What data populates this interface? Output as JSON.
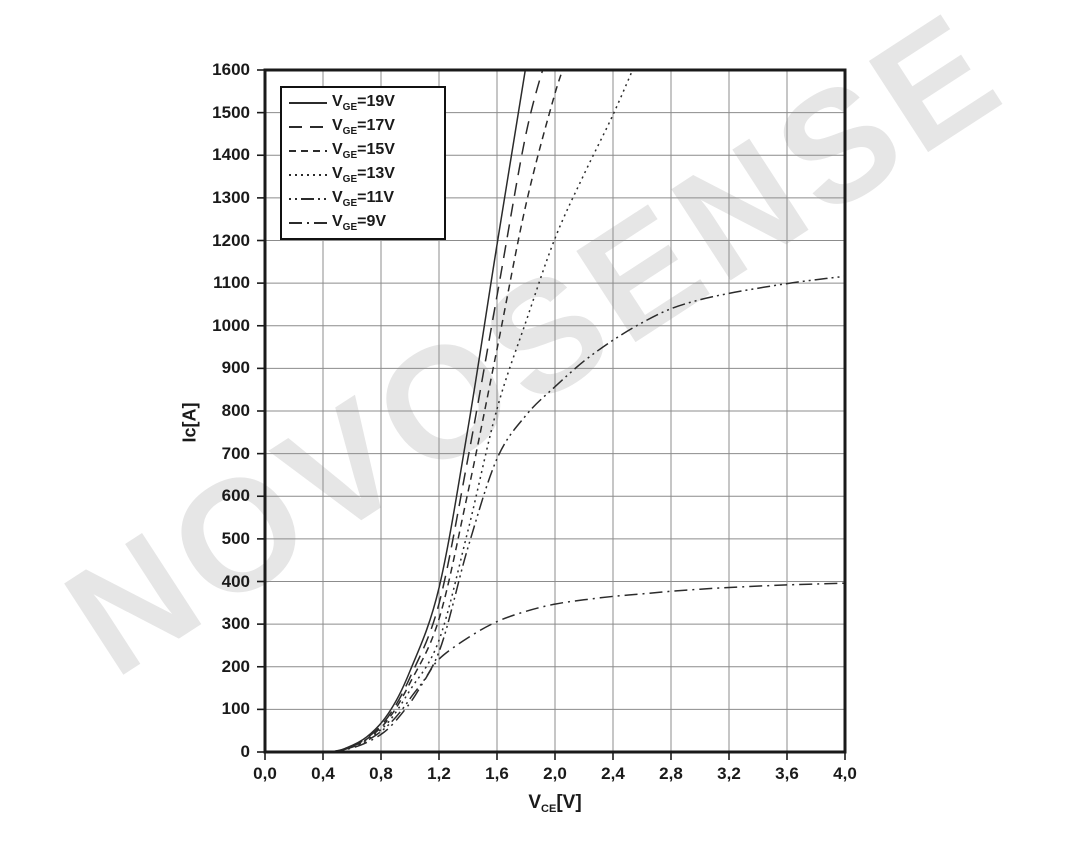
{
  "watermark": "NOVOSENSE",
  "colors": {
    "background": "#ffffff",
    "ink": "#1a1a1a",
    "grid": "#8c8c8c",
    "curve": "#2b2b2b",
    "watermark": "#e6e6e6"
  },
  "chart_data": {
    "type": "line",
    "title": "",
    "xlabel": {
      "pre": "V",
      "sub": "CE",
      "post": "[V]"
    },
    "ylabel": "Ic[A]",
    "xlim": [
      0,
      4
    ],
    "ylim": [
      0,
      1600
    ],
    "grid": true,
    "legend_position": "top-left",
    "x_ticks": [
      0,
      0.4,
      0.8,
      1.2,
      1.6,
      2.0,
      2.4,
      2.8,
      3.2,
      3.6,
      4.0
    ],
    "x_tick_labels": [
      "0,0",
      "0,4",
      "0,8",
      "1,2",
      "1,6",
      "2,0",
      "2,4",
      "2,8",
      "3,2",
      "3,6",
      "4,0"
    ],
    "y_ticks": [
      0,
      100,
      200,
      300,
      400,
      500,
      600,
      700,
      800,
      900,
      1000,
      1100,
      1200,
      1300,
      1400,
      1500,
      1600
    ],
    "y_tick_labels": [
      "0",
      "100",
      "200",
      "300",
      "400",
      "500",
      "600",
      "700",
      "800",
      "900",
      "1000",
      "1100",
      "1200",
      "1300",
      "1400",
      "1500",
      "1600"
    ],
    "series": [
      {
        "name": "VGE=19V",
        "legend": {
          "pre": "V",
          "sub": "GE",
          "post": "=19V"
        },
        "line_style": "solid",
        "dash": "",
        "points": [
          [
            0.45,
            0
          ],
          [
            0.55,
            8
          ],
          [
            0.7,
            35
          ],
          [
            0.85,
            90
          ],
          [
            1.0,
            190
          ],
          [
            1.2,
            385
          ],
          [
            1.4,
            760
          ],
          [
            1.6,
            1190
          ],
          [
            1.8,
            1610
          ]
        ]
      },
      {
        "name": "VGE=17V",
        "legend": {
          "pre": "V",
          "sub": "GE",
          "post": "=17V"
        },
        "line_style": "long-dash",
        "dash": "13 8",
        "points": [
          [
            0.45,
            0
          ],
          [
            0.55,
            7
          ],
          [
            0.7,
            32
          ],
          [
            0.85,
            83
          ],
          [
            1.0,
            175
          ],
          [
            1.2,
            348
          ],
          [
            1.4,
            690
          ],
          [
            1.6,
            1070
          ],
          [
            1.8,
            1450
          ],
          [
            1.95,
            1640
          ]
        ]
      },
      {
        "name": "VGE=15V",
        "legend": {
          "pre": "V",
          "sub": "GE",
          "post": "=15V"
        },
        "line_style": "dash",
        "dash": "7 5",
        "points": [
          [
            0.45,
            0
          ],
          [
            0.55,
            7
          ],
          [
            0.7,
            30
          ],
          [
            0.85,
            77
          ],
          [
            1.0,
            162
          ],
          [
            1.2,
            312
          ],
          [
            1.4,
            610
          ],
          [
            1.6,
            945
          ],
          [
            1.8,
            1285
          ],
          [
            2.0,
            1545
          ],
          [
            2.1,
            1640
          ]
        ]
      },
      {
        "name": "VGE=13V",
        "legend": {
          "pre": "V",
          "sub": "GE",
          "post": "=13V"
        },
        "line_style": "dotted",
        "dash": "2 4",
        "points": [
          [
            0.45,
            0
          ],
          [
            0.55,
            6
          ],
          [
            0.7,
            28
          ],
          [
            0.85,
            70
          ],
          [
            1.0,
            145
          ],
          [
            1.2,
            262
          ],
          [
            1.4,
            520
          ],
          [
            1.6,
            805
          ],
          [
            1.8,
            1010
          ],
          [
            2.0,
            1205
          ],
          [
            2.2,
            1355
          ],
          [
            2.4,
            1495
          ],
          [
            2.56,
            1620
          ]
        ]
      },
      {
        "name": "VGE=11V",
        "legend": {
          "pre": "V",
          "sub": "GE",
          "post": "=11V"
        },
        "line_style": "dash-dot-dot",
        "dash": "2 4 2 4 13 4",
        "points": [
          [
            0.45,
            0
          ],
          [
            0.55,
            6
          ],
          [
            0.7,
            26
          ],
          [
            0.85,
            63
          ],
          [
            1.0,
            125
          ],
          [
            1.2,
            235
          ],
          [
            1.4,
            480
          ],
          [
            1.6,
            688
          ],
          [
            1.8,
            790
          ],
          [
            2.0,
            857
          ],
          [
            2.2,
            917
          ],
          [
            2.4,
            966
          ],
          [
            2.6,
            1007
          ],
          [
            2.8,
            1040
          ],
          [
            3.0,
            1061
          ],
          [
            3.2,
            1076
          ],
          [
            3.4,
            1088
          ],
          [
            3.6,
            1099
          ],
          [
            3.8,
            1108
          ],
          [
            4.0,
            1116
          ]
        ]
      },
      {
        "name": "VGE=9V",
        "legend": {
          "pre": "V",
          "sub": "GE",
          "post": "=9V"
        },
        "line_style": "dash-dot",
        "dash": "13 5 2 5",
        "points": [
          [
            0.45,
            0
          ],
          [
            0.55,
            5
          ],
          [
            0.7,
            22
          ],
          [
            0.85,
            55
          ],
          [
            1.0,
            115
          ],
          [
            1.1,
            168
          ],
          [
            1.2,
            218
          ],
          [
            1.4,
            268
          ],
          [
            1.6,
            306
          ],
          [
            1.8,
            330
          ],
          [
            2.0,
            347
          ],
          [
            2.2,
            357
          ],
          [
            2.4,
            365
          ],
          [
            2.6,
            371
          ],
          [
            2.8,
            377
          ],
          [
            3.0,
            382
          ],
          [
            3.2,
            386
          ],
          [
            3.6,
            392
          ],
          [
            4.0,
            396
          ]
        ]
      }
    ]
  }
}
